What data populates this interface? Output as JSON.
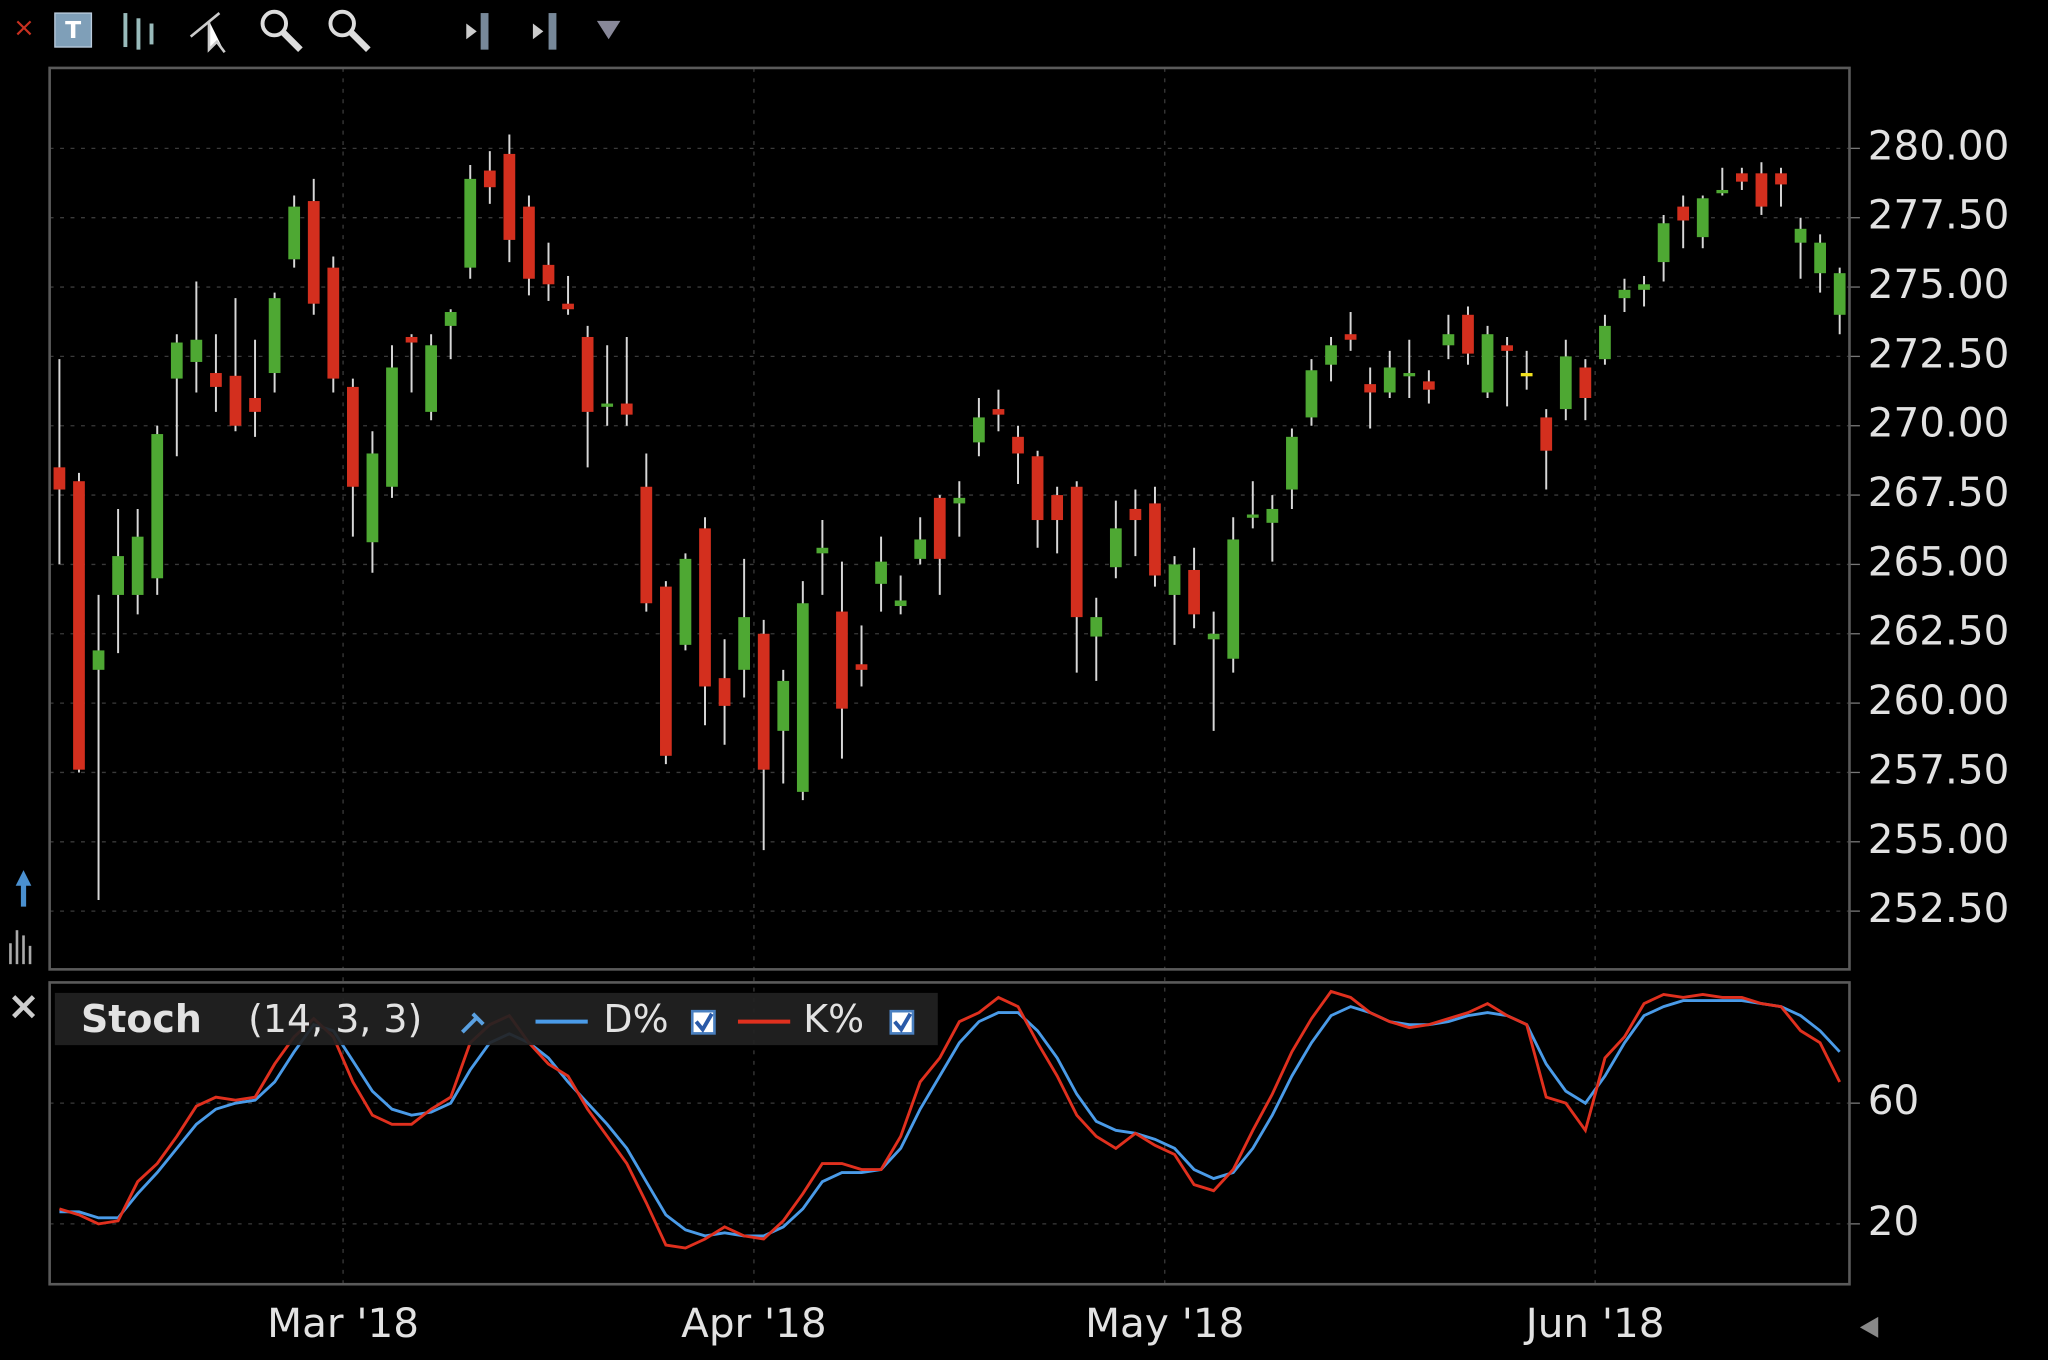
{
  "chart_data": [
    {
      "type": "candlestick",
      "open": [
        268.5,
        268.0,
        261.2,
        263.9,
        263.9,
        264.5,
        271.7,
        272.3,
        271.9,
        271.8,
        271.0,
        271.9,
        276.0,
        278.1,
        275.7,
        271.4,
        265.8,
        267.8,
        273.2,
        270.5,
        273.6,
        275.7,
        279.2,
        279.8,
        277.9,
        275.8,
        274.4,
        273.2,
        270.7,
        270.8,
        267.8,
        264.2,
        262.1,
        266.3,
        260.9,
        261.2,
        262.5,
        259.0,
        256.8,
        265.4,
        263.3,
        261.4,
        264.3,
        263.5,
        265.2,
        267.4,
        267.2,
        269.4,
        270.6,
        269.6,
        268.9,
        267.5,
        267.8,
        262.4,
        264.9,
        267.0,
        267.2,
        263.9,
        264.8,
        262.3,
        261.6,
        266.7,
        266.5,
        267.7,
        270.3,
        272.2,
        273.3,
        271.5,
        271.2,
        271.8,
        271.6,
        272.9,
        274.0,
        271.2,
        272.9,
        271.9,
        270.3,
        270.6,
        272.1,
        272.4,
        274.6,
        274.9,
        275.9,
        277.9,
        276.8,
        278.4,
        279.1,
        279.1,
        279.1,
        276.6,
        275.5,
        274.0
      ],
      "high": [
        272.4,
        268.3,
        263.9,
        267.0,
        267.0,
        270.0,
        273.3,
        275.2,
        273.3,
        274.6,
        273.1,
        274.8,
        278.3,
        278.9,
        276.1,
        271.7,
        269.8,
        272.9,
        273.3,
        273.3,
        274.2,
        279.4,
        279.9,
        280.5,
        278.3,
        276.6,
        275.4,
        273.6,
        272.9,
        273.2,
        269.0,
        264.4,
        265.4,
        266.7,
        262.3,
        265.2,
        263.0,
        261.2,
        264.4,
        266.6,
        265.1,
        262.8,
        266.0,
        264.6,
        266.7,
        267.5,
        268.0,
        271.0,
        271.3,
        270.0,
        269.1,
        267.8,
        268.0,
        263.8,
        267.3,
        267.7,
        267.8,
        265.3,
        265.6,
        263.3,
        266.7,
        268.0,
        267.5,
        269.9,
        272.4,
        273.2,
        274.1,
        272.1,
        272.7,
        273.1,
        272.0,
        274.0,
        274.3,
        273.6,
        273.2,
        272.7,
        270.6,
        273.1,
        272.4,
        274.0,
        275.3,
        275.4,
        277.6,
        278.3,
        278.3,
        279.3,
        279.3,
        279.5,
        279.3,
        277.5,
        276.9,
        275.7
      ],
      "low": [
        265.0,
        257.5,
        252.9,
        261.8,
        263.2,
        263.9,
        268.9,
        271.2,
        270.5,
        269.8,
        269.6,
        271.2,
        275.7,
        274.0,
        271.2,
        266.0,
        264.7,
        267.4,
        271.2,
        270.2,
        272.4,
        275.3,
        278.0,
        275.9,
        274.7,
        274.5,
        274.0,
        268.5,
        270.0,
        270.0,
        263.3,
        257.8,
        261.9,
        259.2,
        258.5,
        260.2,
        254.7,
        257.1,
        256.5,
        263.9,
        258.0,
        260.6,
        263.3,
        263.2,
        265.0,
        263.9,
        266.0,
        268.9,
        269.8,
        267.9,
        265.6,
        265.4,
        261.1,
        260.8,
        264.5,
        265.3,
        264.2,
        262.1,
        262.7,
        259.0,
        261.1,
        266.3,
        265.1,
        267.0,
        270.0,
        271.6,
        272.7,
        269.9,
        271.0,
        271.0,
        270.8,
        272.4,
        272.2,
        271.0,
        270.7,
        271.3,
        267.7,
        270.2,
        270.2,
        272.2,
        274.1,
        274.3,
        275.2,
        276.4,
        276.4,
        278.3,
        278.5,
        277.6,
        277.9,
        275.3,
        274.8,
        273.3
      ],
      "close": [
        267.7,
        257.6,
        261.9,
        265.3,
        266.0,
        269.7,
        273.0,
        273.1,
        271.4,
        270.0,
        270.5,
        274.6,
        277.9,
        274.4,
        271.7,
        267.8,
        269.0,
        272.1,
        273.0,
        272.9,
        274.1,
        278.9,
        278.6,
        276.7,
        275.3,
        275.1,
        274.2,
        270.5,
        270.8,
        270.4,
        263.6,
        258.1,
        265.2,
        260.6,
        259.9,
        263.1,
        257.6,
        260.8,
        263.6,
        265.6,
        259.8,
        261.2,
        265.1,
        263.7,
        265.9,
        265.2,
        267.4,
        270.3,
        270.4,
        269.0,
        266.6,
        266.6,
        263.1,
        263.1,
        266.3,
        266.6,
        264.6,
        265.0,
        263.2,
        262.5,
        265.9,
        266.8,
        267.0,
        269.6,
        272.0,
        272.9,
        273.1,
        271.2,
        272.1,
        271.9,
        271.3,
        273.3,
        272.6,
        273.3,
        272.7,
        271.9,
        269.1,
        272.5,
        271.0,
        273.6,
        274.9,
        275.1,
        277.3,
        277.4,
        278.2,
        278.5,
        278.8,
        277.9,
        278.7,
        277.1,
        276.6,
        275.5
      ],
      "up_color": "#4ea833",
      "down_color": "#d32f1e",
      "doji_color": "#f2e21e",
      "wick_color": "#d8d8d8",
      "ylim": [
        250.4,
        282.9
      ],
      "yticks": [
        {
          "value": 252.5,
          "label": "252.50"
        },
        {
          "value": 255,
          "label": "255.00"
        },
        {
          "value": 257.5,
          "label": "257.50"
        },
        {
          "value": 260,
          "label": "260.00"
        },
        {
          "value": 262.5,
          "label": "262.50"
        },
        {
          "value": 265,
          "label": "265.00"
        },
        {
          "value": 267.5,
          "label": "267.50"
        },
        {
          "value": 270,
          "label": "270.00"
        },
        {
          "value": 272.5,
          "label": "272.50"
        },
        {
          "value": 275,
          "label": "275.00"
        },
        {
          "value": 277.5,
          "label": "277.50"
        },
        {
          "value": 280,
          "label": "280.00"
        }
      ],
      "grid": true
    },
    {
      "type": "line",
      "title": "Stoch",
      "params": "(14, 3, 3)",
      "categories": [
        null,
        null,
        null,
        null,
        null,
        null,
        null,
        null,
        null,
        null,
        null,
        null,
        null,
        null,
        null,
        "Mar '18",
        null,
        null,
        null,
        null,
        null,
        null,
        null,
        null,
        null,
        null,
        null,
        null,
        null,
        null,
        null,
        null,
        null,
        null,
        null,
        null,
        "Apr '18",
        null,
        null,
        null,
        null,
        null,
        null,
        null,
        null,
        null,
        null,
        null,
        null,
        null,
        null,
        null,
        null,
        null,
        null,
        null,
        null,
        "May '18",
        null,
        null,
        null,
        null,
        null,
        null,
        null,
        null,
        null,
        null,
        null,
        null,
        null,
        null,
        null,
        null,
        null,
        null,
        null,
        null,
        null,
        "Jun '18",
        null,
        null,
        null,
        null,
        null,
        null,
        null,
        null,
        null,
        null,
        null,
        null
      ],
      "series": [
        {
          "name": "D%",
          "color": "#4a9be8",
          "values": [
            24,
            24,
            22,
            22,
            30,
            37,
            45,
            53,
            58,
            60,
            61,
            67,
            77,
            86,
            84,
            74,
            64,
            58,
            56,
            57,
            60,
            71,
            80,
            83,
            80,
            75,
            67,
            60,
            53,
            45,
            34,
            23,
            18,
            16,
            17,
            16,
            16,
            19,
            25,
            34,
            37,
            37,
            38,
            45,
            58,
            69,
            80,
            87,
            90,
            90,
            84,
            75,
            63,
            54,
            51,
            50,
            48,
            45,
            38,
            35,
            37,
            45,
            56,
            69,
            80,
            89,
            92,
            90,
            87,
            86,
            86,
            87,
            89,
            90,
            89,
            86,
            73,
            64,
            60,
            69,
            80,
            89,
            92,
            94,
            94,
            94,
            94,
            93,
            92,
            89,
            84,
            77
          ]
        },
        {
          "name": "K%",
          "color": "#e0301e",
          "values": [
            25,
            23,
            20,
            21,
            34,
            40,
            49,
            59,
            62,
            61,
            62,
            73,
            82,
            88,
            82,
            67,
            56,
            53,
            53,
            58,
            62,
            80,
            86,
            89,
            80,
            73,
            69,
            58,
            49,
            40,
            27,
            13,
            12,
            15,
            19,
            16,
            15,
            21,
            30,
            40,
            40,
            38,
            38,
            49,
            67,
            75,
            87,
            90,
            95,
            92,
            80,
            69,
            56,
            49,
            45,
            50,
            46,
            43,
            33,
            31,
            38,
            51,
            63,
            77,
            88,
            97,
            95,
            90,
            87,
            85,
            86,
            88,
            90,
            93,
            89,
            86,
            62,
            60,
            51,
            75,
            82,
            93,
            96,
            95,
            96,
            95,
            95,
            93,
            92,
            84,
            80,
            67
          ]
        }
      ],
      "ylim": [
        0,
        100
      ],
      "yticks": [
        20,
        60
      ],
      "grid": true
    }
  ]
}
